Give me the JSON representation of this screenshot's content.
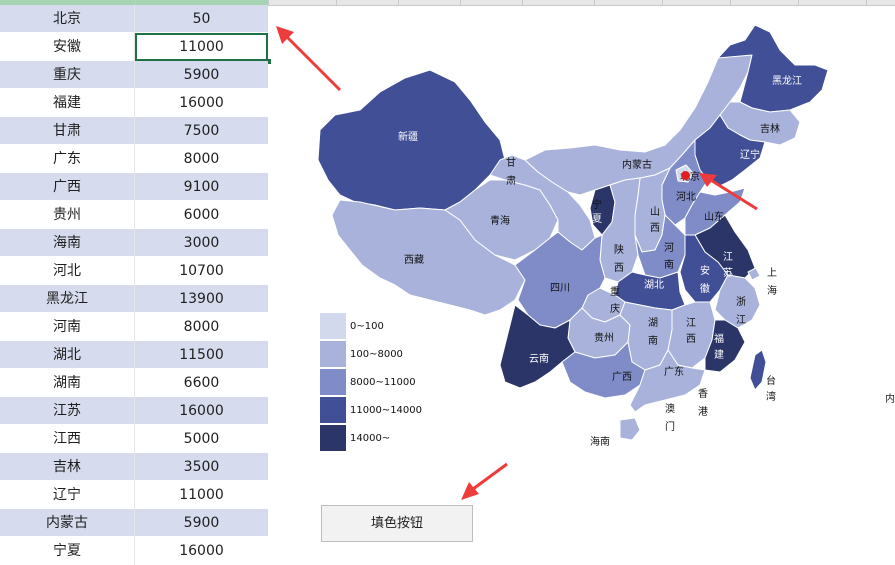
{
  "sheet": {
    "rows": [
      {
        "province": "北京",
        "value": "50"
      },
      {
        "province": "安徽",
        "value": "11000"
      },
      {
        "province": "重庆",
        "value": "5900"
      },
      {
        "province": "福建",
        "value": "16000"
      },
      {
        "province": "甘肃",
        "value": "7500"
      },
      {
        "province": "广东",
        "value": "8000"
      },
      {
        "province": "广西",
        "value": "9100"
      },
      {
        "province": "贵州",
        "value": "6000"
      },
      {
        "province": "海南",
        "value": "3000"
      },
      {
        "province": "河北",
        "value": "10700"
      },
      {
        "province": "黑龙江",
        "value": "13900"
      },
      {
        "province": "河南",
        "value": "8000"
      },
      {
        "province": "湖北",
        "value": "11500"
      },
      {
        "province": "湖南",
        "value": "6600"
      },
      {
        "province": "江苏",
        "value": "16000"
      },
      {
        "province": "江西",
        "value": "5000"
      },
      {
        "province": "吉林",
        "value": "3500"
      },
      {
        "province": "辽宁",
        "value": "11000"
      },
      {
        "province": "内蒙古",
        "value": "5900"
      },
      {
        "province": "宁夏",
        "value": "16000"
      }
    ],
    "selected_row": 1
  },
  "map": {
    "labels": {
      "xinjiang": "新疆",
      "xizang": "西藏",
      "qinghai": "青海",
      "gansu_1": "甘",
      "gansu_2": "肃",
      "neimenggu": "内蒙古",
      "heilongjiang": "黑龙江",
      "jilin": "吉林",
      "liaoning": "辽宁",
      "beijing": "北京",
      "hebei": "河北",
      "shandong": "山东",
      "shanxi_1": "山",
      "shanxi_2": "西",
      "ningxia_1": "宁",
      "ningxia_2": "夏",
      "shaanxi_1": "陕",
      "shaanxi_2": "西",
      "henan_1": "河",
      "henan_2": "南",
      "jiangsu_1": "江",
      "jiangsu_2": "苏",
      "shanghai_1": "上",
      "shanghai_2": "海",
      "anhui_1": "安",
      "anhui_2": "徽",
      "hubei": "湖北",
      "sichuan": "四川",
      "chongqing_1": "重",
      "chongqing_2": "庆",
      "zhejiang_1": "浙",
      "zhejiang_2": "江",
      "guizhou": "贵州",
      "hunan_1": "湖",
      "hunan_2": "南",
      "jiangxi_1": "江",
      "jiangxi_2": "西",
      "fujian_1": "福",
      "fujian_2": "建",
      "yunnan": "云南",
      "guangxi": "广西",
      "guangdong": "广东",
      "taiwan_1": "台",
      "taiwan_2": "湾",
      "xianggang_1": "香",
      "xianggang_2": "港",
      "aomen_1": "澳",
      "aomen_2": "门",
      "hainan": "海南"
    }
  },
  "legend": [
    {
      "label": "0~100",
      "color": "#d3d9ec"
    },
    {
      "label": "100~8000",
      "color": "#a8b2da"
    },
    {
      "label": "8000~11000",
      "color": "#7f8cc8"
    },
    {
      "label": "11000~14000",
      "color": "#414f96"
    },
    {
      "label": "14000~",
      "color": "#2b3568"
    }
  ],
  "button": {
    "label": "填色按钮"
  },
  "edge_text": "内"
}
